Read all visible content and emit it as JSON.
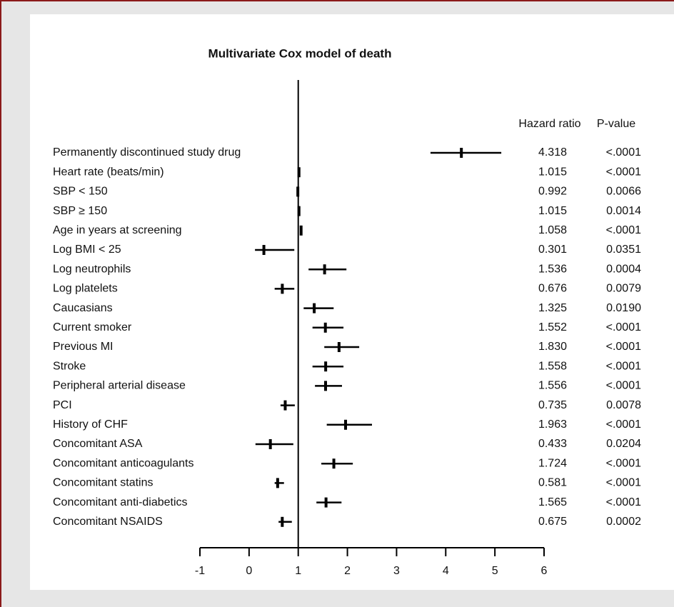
{
  "chart_data": {
    "type": "forest",
    "title": "Multivariate Cox model of death",
    "value_header": "Hazard ratio",
    "p_header": "P-value",
    "categories": [
      "Permanently discontinued study drug",
      "Heart rate (beats/min)",
      "SBP < 150",
      "SBP ≥ 150",
      "Age in years at screening",
      "Log BMI < 25",
      "Log neutrophils",
      "Log platelets",
      "Caucasians",
      "Current smoker",
      "Previous MI",
      "Stroke",
      "Peripheral arterial disease",
      "PCI",
      "History of CHF",
      "Concomitant ASA",
      "Concomitant anticoagulants",
      "Concomitant statins",
      "Concomitant anti-diabetics",
      "Concomitant NSAIDS"
    ],
    "values": [
      4.318,
      1.015,
      0.992,
      1.015,
      1.058,
      0.301,
      1.536,
      0.676,
      1.325,
      1.552,
      1.83,
      1.558,
      1.556,
      0.735,
      1.963,
      0.433,
      1.724,
      0.581,
      1.565,
      0.675
    ],
    "value_labels": [
      "4.318",
      "1.015",
      "0.992",
      "1.015",
      "1.058",
      "0.301",
      "1.536",
      "0.676",
      "1.325",
      "1.552",
      "1.830",
      "1.558",
      "1.556",
      "0.735",
      "1.963",
      "0.433",
      "1.724",
      "0.581",
      "1.565",
      "0.675"
    ],
    "ci_lower": [
      3.69,
      1.0,
      0.98,
      1.01,
      1.04,
      0.12,
      1.21,
      0.52,
      1.11,
      1.29,
      1.53,
      1.29,
      1.34,
      0.64,
      1.58,
      0.13,
      1.47,
      0.52,
      1.37,
      0.6
    ],
    "ci_upper": [
      5.13,
      1.03,
      1.0,
      1.02,
      1.08,
      0.92,
      1.98,
      0.92,
      1.72,
      1.92,
      2.24,
      1.92,
      1.89,
      0.93,
      2.5,
      0.9,
      2.11,
      0.71,
      1.88,
      0.87
    ],
    "p_values": [
      "<.0001",
      "<.0001",
      "0.0066",
      "0.0014",
      "<.0001",
      "0.0351",
      "0.0004",
      "0.0079",
      "0.0190",
      "<.0001",
      "<.0001",
      "<.0001",
      "<.0001",
      "0.0078",
      "<.0001",
      "0.0204",
      "<.0001",
      "<.0001",
      "<.0001",
      "0.0002"
    ],
    "color": "#000000",
    "reference_line": 1,
    "xlim": [
      -1,
      6
    ],
    "xticks": [
      -1,
      0,
      1,
      2,
      3,
      4,
      5,
      6
    ]
  }
}
